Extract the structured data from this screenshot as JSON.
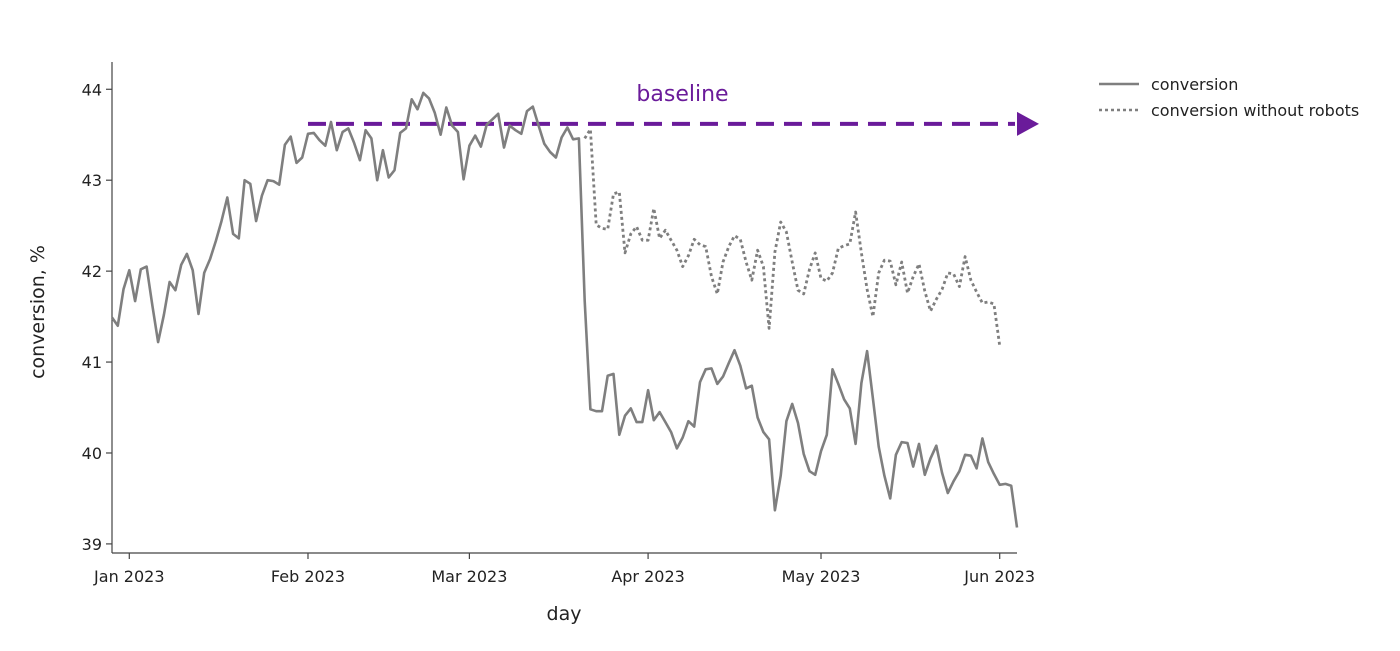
{
  "chart_data": {
    "type": "line",
    "xlabel": "day",
    "ylabel": "conversion, %",
    "xlim": [
      "2022-12-29",
      "2023-06-04"
    ],
    "ylim": [
      38.9,
      44.3
    ],
    "yticks": [
      39,
      40,
      41,
      42,
      43,
      44
    ],
    "xticks": [
      {
        "date": "2023-01-01",
        "label": "Jan 2023"
      },
      {
        "date": "2023-02-01",
        "label": "Feb 2023"
      },
      {
        "date": "2023-03-01",
        "label": "Mar 2023"
      },
      {
        "date": "2023-04-01",
        "label": "Apr 2023"
      },
      {
        "date": "2023-05-01",
        "label": "May 2023"
      },
      {
        "date": "2023-06-01",
        "label": "Jun 2023"
      }
    ],
    "grid": false,
    "legend_position": "top-right",
    "series": [
      {
        "name": "conversion",
        "style": "solid",
        "color": "#7f7f7f",
        "start_date": "2022-12-29",
        "values": [
          41.49,
          41.4,
          41.8,
          42.01,
          41.67,
          42.02,
          42.05,
          41.62,
          41.22,
          41.52,
          41.88,
          41.79,
          42.07,
          42.19,
          42.01,
          41.53,
          41.98,
          42.13,
          42.33,
          42.55,
          42.81,
          42.41,
          42.36,
          43.0,
          42.96,
          42.55,
          42.83,
          43.0,
          42.99,
          42.95,
          43.39,
          43.48,
          43.19,
          43.25,
          43.51,
          43.52,
          43.44,
          43.38,
          43.64,
          43.33,
          43.53,
          43.57,
          43.41,
          43.22,
          43.55,
          43.46,
          43.0,
          43.33,
          43.03,
          43.11,
          43.52,
          43.57,
          43.89,
          43.78,
          43.96,
          43.9,
          43.74,
          43.5,
          43.8,
          43.6,
          43.53,
          43.01,
          43.38,
          43.49,
          43.37,
          43.61,
          43.67,
          43.73,
          43.36,
          43.6,
          43.55,
          43.51,
          43.76,
          43.81,
          43.6,
          43.4,
          43.31,
          43.25,
          43.47,
          43.58,
          43.45,
          43.46,
          41.67,
          40.48,
          40.46,
          40.46,
          40.85,
          40.87,
          40.2,
          40.41,
          40.49,
          40.34,
          40.34,
          40.69,
          40.36,
          40.45,
          40.34,
          40.23,
          40.05,
          40.17,
          40.35,
          40.29,
          40.78,
          40.92,
          40.93,
          40.76,
          40.84,
          40.99,
          41.13,
          40.96,
          40.71,
          40.74,
          40.39,
          40.23,
          40.15,
          39.37,
          39.75,
          40.35,
          40.54,
          40.33,
          39.99,
          39.8,
          39.76,
          40.02,
          40.2,
          40.92,
          40.76,
          40.59,
          40.49,
          40.1,
          40.77,
          41.12,
          40.6,
          40.07,
          39.75,
          39.5,
          39.98,
          40.12,
          40.11,
          39.85,
          40.1,
          39.76,
          39.94,
          40.08,
          39.78,
          39.56,
          39.69,
          39.8,
          39.98,
          39.97,
          39.83,
          40.16,
          39.9,
          39.77,
          39.65,
          39.66,
          39.64,
          39.18
        ]
      },
      {
        "name": "conversion without robots",
        "style": "dotted",
        "color": "#7f7f7f",
        "start_date": "2023-03-21",
        "values": [
          43.46,
          43.56,
          42.51,
          42.47,
          42.46,
          42.85,
          42.87,
          42.2,
          42.41,
          42.49,
          42.34,
          42.34,
          42.69,
          42.36,
          42.45,
          42.34,
          42.23,
          42.05,
          42.17,
          42.35,
          42.29,
          42.27,
          41.94,
          41.75,
          42.1,
          42.27,
          42.39,
          42.35,
          42.1,
          41.9,
          42.23,
          42.05,
          41.37,
          42.21,
          42.54,
          42.43,
          42.1,
          41.79,
          41.75,
          42.02,
          42.2,
          41.92,
          41.89,
          41.98,
          42.25,
          42.28,
          42.3,
          42.65,
          42.2,
          41.8,
          41.5,
          41.98,
          42.12,
          42.11,
          41.85,
          42.1,
          41.76,
          41.94,
          42.08,
          41.78,
          41.56,
          41.69,
          41.8,
          41.98,
          41.97,
          41.83,
          42.16,
          41.9,
          41.77,
          41.65,
          41.66,
          41.64,
          41.18
        ]
      }
    ],
    "annotations": [
      {
        "text": "baseline",
        "color": "#6a1b9a",
        "value": 43.62,
        "from_date": "2023-02-01",
        "to_date": "2023-06-04",
        "style": "dashed-arrow"
      }
    ]
  }
}
